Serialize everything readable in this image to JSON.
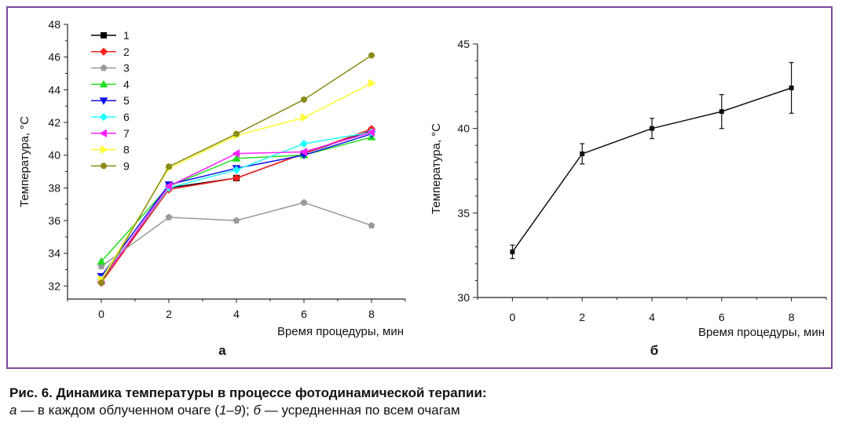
{
  "colors": {
    "frame": "#7b4a9a",
    "series": [
      "#000000",
      "#ff2020",
      "#9a9a9a",
      "#22dd22",
      "#1010ee",
      "#22ffff",
      "#ff22ff",
      "#ffff33",
      "#8b8b1a"
    ]
  },
  "chart_data": [
    {
      "type": "line",
      "panel_label": "а",
      "xlabel": "Время процедуры, мин",
      "ylabel": "Температура, °С",
      "xlim": [
        -1,
        9
      ],
      "ylim": [
        31.2,
        48
      ],
      "x_ticks": [
        0,
        2,
        4,
        6,
        8
      ],
      "y_ticks": [
        32,
        34,
        36,
        38,
        40,
        42,
        44,
        46,
        48
      ],
      "legend_position": "top-left",
      "x": [
        0,
        2,
        4,
        6,
        8
      ],
      "series": [
        {
          "name": "1",
          "marker": "square",
          "values": [
            32.3,
            38.0,
            38.6,
            40.1,
            41.5
          ]
        },
        {
          "name": "2",
          "marker": "diamond",
          "values": [
            32.2,
            37.9,
            38.6,
            40.1,
            41.6
          ]
        },
        {
          "name": "3",
          "marker": "pentagon",
          "values": [
            33.2,
            36.2,
            36.0,
            37.1,
            35.7
          ]
        },
        {
          "name": "4",
          "marker": "triangle-up",
          "values": [
            33.5,
            38.1,
            39.8,
            40.0,
            41.1
          ]
        },
        {
          "name": "5",
          "marker": "triangle-down",
          "values": [
            32.6,
            38.2,
            39.2,
            40.0,
            41.3
          ]
        },
        {
          "name": "6",
          "marker": "diamond",
          "values": [
            32.4,
            38.0,
            39.1,
            40.7,
            41.4
          ]
        },
        {
          "name": "7",
          "marker": "triangle-left",
          "values": [
            32.3,
            38.1,
            40.1,
            40.2,
            41.4
          ]
        },
        {
          "name": "8",
          "marker": "triangle-right",
          "values": [
            32.4,
            39.2,
            41.2,
            42.3,
            44.4
          ]
        },
        {
          "name": "9",
          "marker": "circle",
          "values": [
            32.2,
            39.3,
            41.3,
            43.4,
            46.1
          ]
        }
      ]
    },
    {
      "type": "line",
      "panel_label": "б",
      "xlabel": "Время процедуры, мин",
      "ylabel": "Температура, °С",
      "xlim": [
        -1,
        9
      ],
      "ylim": [
        30,
        45
      ],
      "x_ticks": [
        0,
        2,
        4,
        6,
        8
      ],
      "y_ticks": [
        30,
        35,
        40,
        45
      ],
      "x": [
        0,
        2,
        4,
        6,
        8
      ],
      "values": [
        32.7,
        38.5,
        40.0,
        41.0,
        42.4
      ],
      "error": [
        0.4,
        0.6,
        0.6,
        1.0,
        1.5
      ]
    }
  ],
  "caption": {
    "title": "Рис. 6. Динамика температуры в процессе фотодинамической терапии:",
    "line2_a": "а",
    "line2_b": " — в каждом облученном очаге (",
    "line2_c": "1–9",
    "line2_d": "); ",
    "line2_e": "б",
    "line2_f": " — усредненная по всем очагам"
  }
}
